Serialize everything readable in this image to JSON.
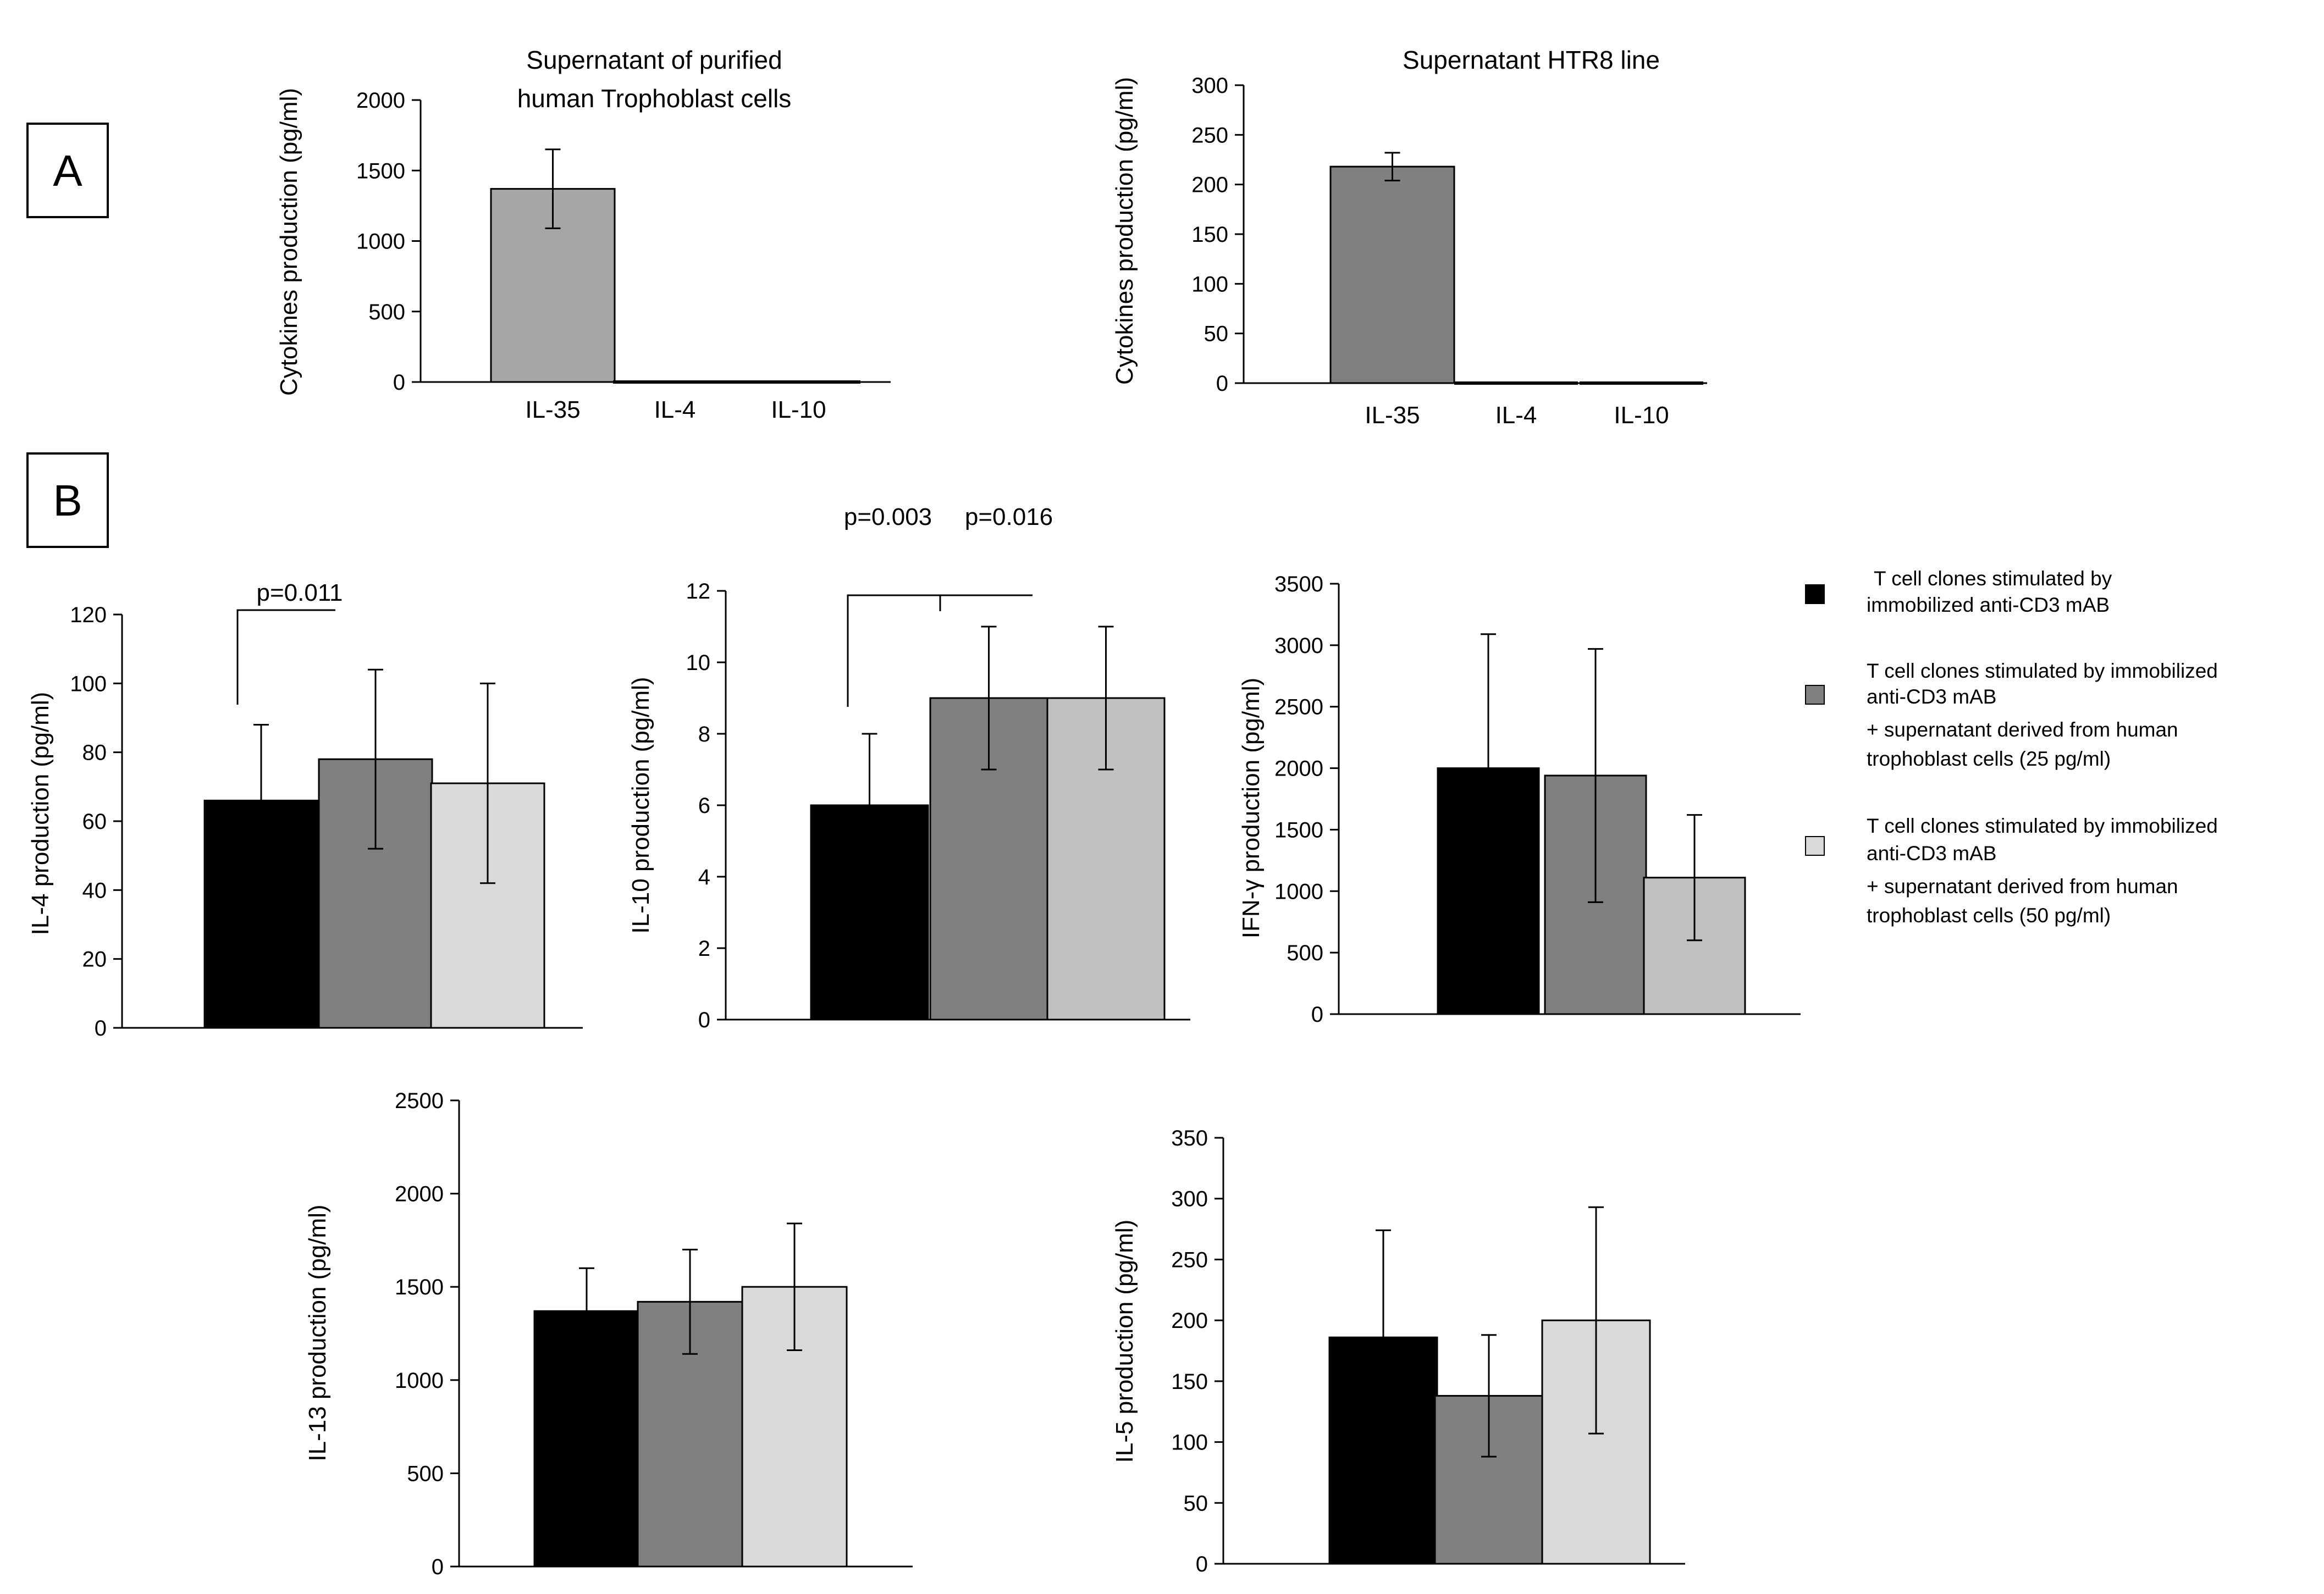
{
  "panels": [
    {
      "id": "A",
      "label": "A"
    },
    {
      "id": "B",
      "label": "B"
    }
  ],
  "pvalues": {
    "il10": [
      "p=0.003",
      "p=0.016"
    ]
  },
  "legend": {
    "entries": [
      {
        "color": "#000000",
        "lines": [
          "T cell clones stimulated by",
          "immobilized anti-CD3 mAB"
        ]
      },
      {
        "color": "#808080",
        "lines": [
          "T cell clones stimulated by immobilized",
          "anti-CD3 mAB",
          "+ supernatant derived from human",
          "trophoblast cells (25 pg/ml)"
        ]
      },
      {
        "color": "#d9d9d9",
        "lines": [
          "T cell clones stimulated by immobilized",
          "anti-CD3 mAB",
          "+ supernatant derived from human",
          "trophoblast cells (50 pg/ml)"
        ]
      }
    ]
  },
  "chart_data": [
    {
      "id": "A1",
      "type": "bar",
      "title": [
        "Supernatant of purified",
        "human Trophoblast cells"
      ],
      "ylabel": "Cytokines production (pg/ml)",
      "categories": [
        "IL-35",
        "IL-4",
        "IL-10"
      ],
      "values": [
        1370,
        0,
        0
      ],
      "errors": [
        280,
        null,
        null
      ],
      "colors": [
        "#a6a6a6",
        "#a6a6a6",
        "#a6a6a6"
      ],
      "ylim": [
        0,
        2000
      ],
      "yticks": [
        0,
        500,
        1000,
        1500,
        2000
      ]
    },
    {
      "id": "A2",
      "type": "bar",
      "title": [
        "Supernatant HTR8 line"
      ],
      "ylabel": "Cytokines production (pg/ml)",
      "categories": [
        "IL-35",
        "IL-4",
        "IL-10"
      ],
      "values": [
        218,
        0,
        0
      ],
      "errors": [
        14,
        null,
        null
      ],
      "colors": [
        "#808080",
        "#808080",
        "#808080"
      ],
      "ylim": [
        0,
        300
      ],
      "yticks": [
        0,
        50,
        100,
        150,
        200,
        250,
        300
      ]
    },
    {
      "id": "B1",
      "type": "bar",
      "ylabel": "IL-4 production (pg/ml)",
      "series": [
        "T cell clones stimulated by immobilized anti-CD3 mAB",
        "+ supernatant (25 pg/ml)",
        "+ supernatant (50 pg/ml)"
      ],
      "values": [
        66,
        78,
        71
      ],
      "errors": [
        22,
        26,
        29
      ],
      "colors": [
        "#000000",
        "#808080",
        "#d9d9d9"
      ],
      "ylim": [
        0,
        120
      ],
      "yticks": [
        0,
        20,
        40,
        60,
        80,
        100,
        120
      ],
      "annotation": "p=0.011"
    },
    {
      "id": "B2",
      "type": "bar",
      "ylabel": "IL-10 production (pg/ml)",
      "series": [
        "T cell clones stimulated by immobilized anti-CD3 mAB",
        "+ supernatant (25 pg/ml)",
        "+ supernatant (50 pg/ml)"
      ],
      "values": [
        6,
        9,
        9
      ],
      "errors": [
        2,
        2,
        2
      ],
      "colors": [
        "#000000",
        "#808080",
        "#c0c0c0"
      ],
      "ylim": [
        0,
        12
      ],
      "yticks": [
        0,
        2,
        4,
        6,
        8,
        10,
        12
      ]
    },
    {
      "id": "B3",
      "type": "bar",
      "ylabel": "IFN-γ production (pg/ml)",
      "series": [
        "T cell clones stimulated by immobilized anti-CD3 mAB",
        "+ supernatant (25 pg/ml)",
        "+ supernatant (50 pg/ml)"
      ],
      "values": [
        2000,
        1940,
        1110
      ],
      "errors": [
        1090,
        1030,
        510
      ],
      "colors": [
        "#000000",
        "#808080",
        "#c0c0c0"
      ],
      "ylim": [
        0,
        3500
      ],
      "yticks": [
        0,
        500,
        1000,
        1500,
        2000,
        2500,
        3000,
        3500
      ]
    },
    {
      "id": "B4",
      "type": "bar",
      "ylabel": "IL-13 production (pg/ml)",
      "series": [
        "T cell clones stimulated by immobilized anti-CD3 mAB",
        "+ supernatant (25 pg/ml)",
        "+ supernatant (50 pg/ml)"
      ],
      "values": [
        1370,
        1420,
        1500
      ],
      "errors": [
        230,
        280,
        340
      ],
      "colors": [
        "#000000",
        "#808080",
        "#d9d9d9"
      ],
      "ylim": [
        0,
        2500
      ],
      "yticks": [
        0,
        500,
        1000,
        1500,
        2000,
        2500
      ]
    },
    {
      "id": "B5",
      "type": "bar",
      "ylabel": "IL-5 production (pg/ml)",
      "series": [
        "T cell clones stimulated by immobilized anti-CD3 mAB",
        "+ supernatant (25 pg/ml)",
        "+ supernatant (50 pg/ml)"
      ],
      "values": [
        186,
        138,
        200
      ],
      "errors": [
        88,
        50,
        93
      ],
      "colors": [
        "#000000",
        "#808080",
        "#d9d9d9"
      ],
      "ylim": [
        0,
        350
      ],
      "yticks": [
        0,
        50,
        100,
        150,
        200,
        250,
        300,
        350
      ]
    }
  ]
}
